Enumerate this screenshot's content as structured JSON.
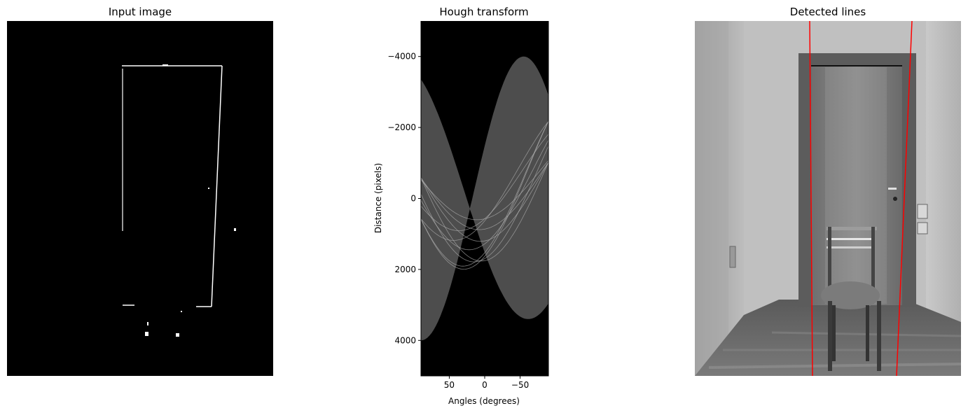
{
  "figure": {
    "panels": [
      {
        "title": "Input image"
      },
      {
        "title": "Hough transform"
      },
      {
        "title": "Detected lines"
      }
    ]
  },
  "chart_data": [
    {
      "type": "image",
      "title": "Input image",
      "colormap": "gray",
      "axes_visible": false
    },
    {
      "type": "heatmap",
      "title": "Hough transform",
      "xlabel": "Angles (degrees)",
      "ylabel": "Distance (pixels)",
      "xlim": [
        90,
        -90
      ],
      "ylim": [
        5000,
        -5000
      ],
      "xticks": [
        50,
        0,
        -50
      ],
      "xtick_labels": [
        "50",
        "0",
        "−50"
      ],
      "yticks": [
        -4000,
        -2000,
        0,
        2000,
        4000
      ],
      "ytick_labels": [
        "−4000",
        "−2000",
        "0",
        "2000",
        "4000"
      ],
      "colormap": "gray"
    },
    {
      "type": "image",
      "title": "Detected lines",
      "colormap": "gray",
      "axes_visible": false,
      "line_color": "#ff0000",
      "detected_lines_count": 2
    }
  ]
}
